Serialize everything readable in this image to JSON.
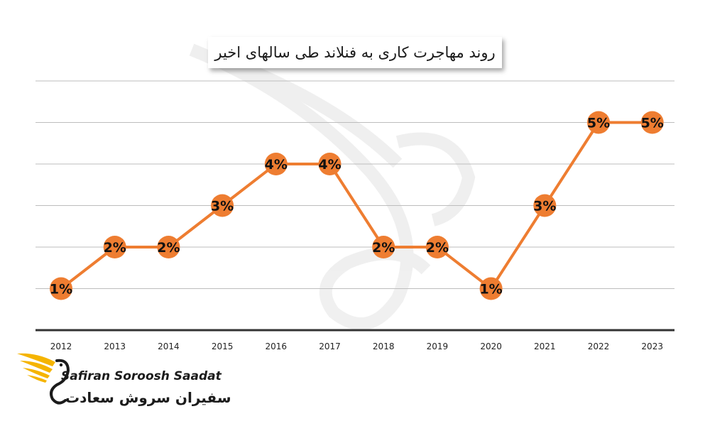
{
  "chart_data": {
    "type": "line",
    "title": "روند مهاجرت کاری به فنلاند طی سالهای اخیر",
    "categories": [
      "2012",
      "2013",
      "2014",
      "2015",
      "2016",
      "2017",
      "2018",
      "2019",
      "2020",
      "2021",
      "2022",
      "2023"
    ],
    "series": [
      {
        "values": [
          1,
          2,
          2,
          3,
          4,
          4,
          2,
          2,
          1,
          3,
          5,
          5
        ]
      }
    ],
    "data_labels": [
      "1%",
      "2%",
      "2%",
      "3%",
      "4%",
      "4%",
      "2%",
      "2%",
      "1%",
      "3%",
      "5%",
      "5%"
    ],
    "ylim": [
      0,
      6
    ],
    "grid": true,
    "line_color": "#ee7d31",
    "marker_color": "#ee7d31",
    "label_color": "#111111",
    "axis_color": "#333333"
  },
  "brand": {
    "name_en": "Safiran Soroosh Saadat",
    "name_fa": "سفیران سروش سعادت",
    "logo_color": "#f5b400"
  }
}
